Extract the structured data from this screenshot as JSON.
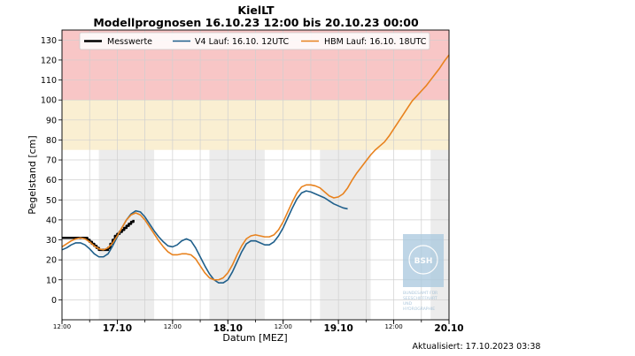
{
  "chart_data": {
    "type": "line",
    "title": "KielLT",
    "subtitle": "Modellprognosen 16.10.23 12:00 bis 20.10.23 00:00",
    "xlabel": "Datum [MEZ]",
    "ylabel": "Pegelstand [cm]",
    "updated": "Aktualisiert: 17.10.2023 03:38",
    "x_unit": "hours since 16.10.23 12:00",
    "xlim": [
      0,
      84
    ],
    "ylim": [
      -10,
      135
    ],
    "grid": true,
    "legend_position": "top",
    "yticks": [
      0,
      10,
      20,
      30,
      40,
      50,
      60,
      70,
      80,
      90,
      100,
      110,
      120,
      130
    ],
    "xticks": [
      {
        "x": 0,
        "label": "12:00",
        "major": false
      },
      {
        "x": 12,
        "label": "17.10",
        "major": true
      },
      {
        "x": 24,
        "label": "12:00",
        "major": false
      },
      {
        "x": 36,
        "label": "18.10",
        "major": true
      },
      {
        "x": 48,
        "label": "12:00",
        "major": false
      },
      {
        "x": 60,
        "label": "19.10",
        "major": true
      },
      {
        "x": 72,
        "label": "12:00",
        "major": false
      },
      {
        "x": 84,
        "label": "20.10",
        "major": true
      }
    ],
    "bands": [
      {
        "from": 100,
        "to": 135,
        "color": "#f8c6c6"
      },
      {
        "from": 75,
        "to": 100,
        "color": "#faefd2"
      }
    ],
    "night_shading": [
      [
        8,
        20
      ],
      [
        32,
        44
      ],
      [
        56,
        67
      ],
      [
        80,
        84
      ]
    ],
    "series": [
      {
        "name": "Messwerte",
        "color": "#000000",
        "width": 2.5,
        "step": true,
        "x": [
          0,
          1,
          2,
          3,
          4,
          5,
          5.5,
          6,
          6.5,
          7,
          7.5,
          8,
          8.5,
          9,
          9.5,
          10,
          10.5,
          11,
          11.5,
          12,
          12.5,
          13,
          13.5,
          14,
          14.5,
          15,
          15.5
        ],
        "y": [
          31,
          31,
          31,
          31,
          31,
          31,
          30,
          29,
          28,
          27,
          26,
          25,
          25,
          25,
          25,
          26,
          28,
          30,
          32,
          33,
          34,
          35,
          36,
          37,
          38,
          39,
          40
        ]
      },
      {
        "name": "V4 Lauf: 16.10. 12UTC",
        "color": "#1f5f8b",
        "width": 1.6,
        "x": [
          0,
          1,
          2,
          3,
          4,
          5,
          6,
          7,
          8,
          9,
          10,
          11,
          12,
          13,
          14,
          15,
          16,
          17,
          18,
          19,
          20,
          21,
          22,
          23,
          24,
          25,
          26,
          27,
          28,
          29,
          30,
          31,
          32,
          33,
          34,
          35,
          36,
          37,
          38,
          39,
          40,
          41,
          42,
          43,
          44,
          45,
          46,
          47,
          48,
          49,
          50,
          51,
          52,
          53,
          54,
          55,
          56,
          57,
          58,
          59,
          60,
          61,
          62
        ],
        "y": [
          25,
          26,
          27.5,
          28.5,
          28.5,
          27.5,
          25.5,
          23,
          21.5,
          21.5,
          23,
          27,
          31.5,
          36,
          40,
          43,
          44.5,
          44,
          41.5,
          38,
          34.5,
          31.5,
          29,
          27,
          26.5,
          27.5,
          29.5,
          30.5,
          29.5,
          26,
          21.5,
          17,
          13,
          10,
          8.5,
          8.5,
          10,
          14,
          19,
          24,
          28,
          29.5,
          29.5,
          28.5,
          27.5,
          27.5,
          29,
          32,
          36,
          41,
          46,
          50.5,
          53.5,
          54.5,
          54,
          53,
          52,
          51,
          49.5,
          48,
          47,
          46,
          45.5
        ]
      },
      {
        "name": "HBM Lauf: 16.10. 18UTC",
        "color": "#e8821e",
        "width": 1.6,
        "x": [
          0,
          1,
          2,
          3,
          4,
          5,
          6,
          7,
          8,
          9,
          10,
          11,
          12,
          13,
          14,
          15,
          16,
          17,
          18,
          19,
          20,
          21,
          22,
          23,
          24,
          25,
          26,
          27,
          28,
          29,
          30,
          31,
          32,
          33,
          34,
          35,
          36,
          37,
          38,
          39,
          40,
          41,
          42,
          43,
          44,
          45,
          46,
          47,
          48,
          49,
          50,
          51,
          52,
          53,
          54,
          55,
          56,
          57,
          58,
          59,
          60,
          61,
          62,
          63,
          64,
          65,
          66,
          67,
          68,
          69,
          70,
          71,
          72,
          73,
          74,
          75,
          76,
          77,
          78,
          79,
          80,
          81,
          82,
          83,
          84
        ],
        "y": [
          26.5,
          28,
          29.5,
          30.5,
          31,
          30.5,
          29,
          27,
          25.5,
          25,
          26,
          28.5,
          32,
          36,
          40,
          42.5,
          43.5,
          42.5,
          40,
          36.5,
          33,
          29.5,
          26.5,
          24,
          22.5,
          22.5,
          23,
          23,
          22.5,
          20.5,
          17,
          13.5,
          11,
          10,
          10,
          11,
          13.5,
          17.5,
          22.5,
          27,
          30.5,
          32,
          32.5,
          32,
          31.5,
          31.5,
          32.5,
          35,
          39,
          44,
          49,
          53.5,
          56.5,
          57.5,
          57.5,
          57,
          56,
          54,
          52,
          51,
          51.5,
          53,
          56,
          60,
          63.5,
          66.5,
          69.5,
          72.5,
          75,
          77,
          79,
          82,
          85.5,
          89,
          92.5,
          96,
          99.5,
          102,
          104.5,
          107,
          110,
          113,
          116,
          119.5,
          122.5
        ]
      }
    ]
  },
  "watermark": {
    "logo_text": "BSH",
    "lines": [
      "BUNDESAMT FÜR",
      "SEESCHIFFFAHRT",
      "UND",
      "HYDROGRAPHIE"
    ]
  }
}
